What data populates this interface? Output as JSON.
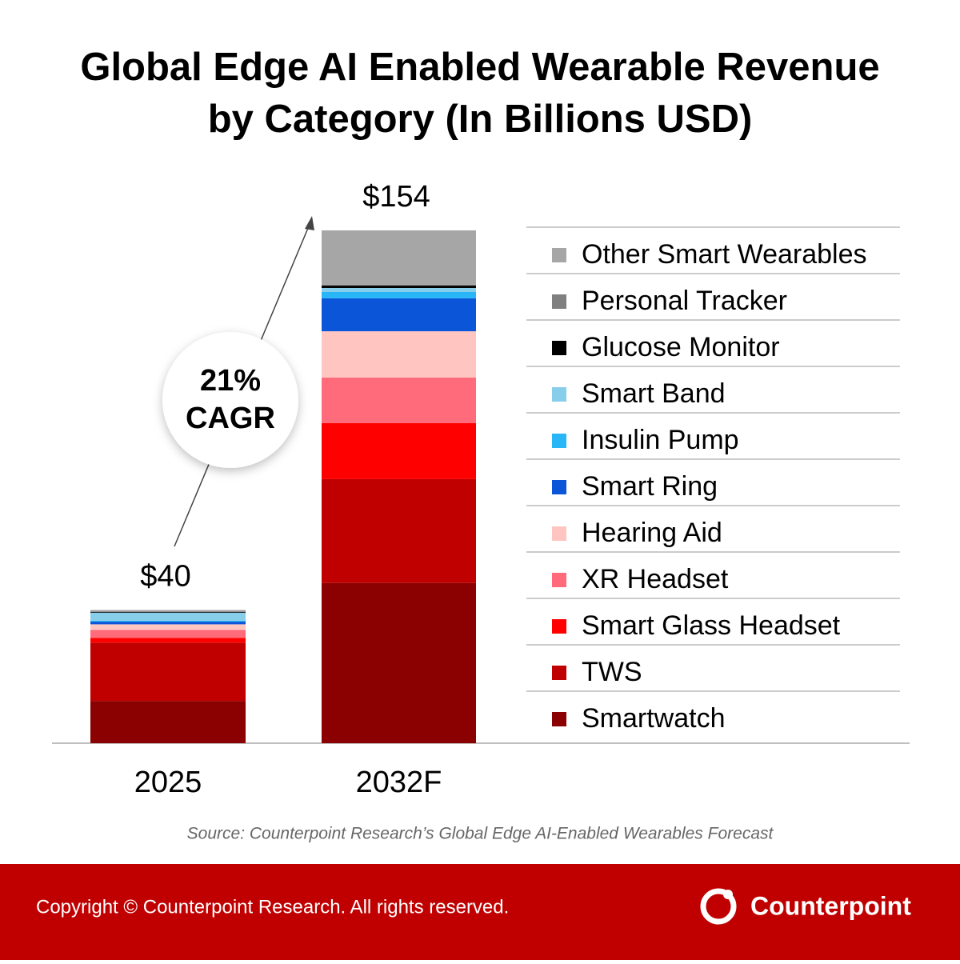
{
  "chart_data": {
    "type": "stacked_bar",
    "title": [
      "Global Edge AI Enabled Wearable Revenue",
      "by Category (In Billions USD)"
    ],
    "categories": [
      "2025",
      "2032F"
    ],
    "series": [
      {
        "name": "Smartwatch",
        "color": "#8b0000",
        "values": [
          12.7,
          48.1
        ]
      },
      {
        "name": "TWS",
        "color": "#c00000",
        "values": [
          17.5,
          31.2
        ]
      },
      {
        "name": "Smart Glass Headset",
        "color": "#ff0000",
        "values": [
          1.4,
          16.8
        ]
      },
      {
        "name": "XR Headset",
        "color": "#ff6b7a",
        "values": [
          2.4,
          13.7
        ]
      },
      {
        "name": "Hearing Aid",
        "color": "#ffc5c0",
        "values": [
          1.7,
          13.9
        ]
      },
      {
        "name": "Smart Ring",
        "color": "#0a55d8",
        "values": [
          0.8,
          9.9
        ]
      },
      {
        "name": "Insulin Pump",
        "color": "#29b6f6",
        "values": [
          0.3,
          1.9
        ]
      },
      {
        "name": "Smart Band",
        "color": "#87ceeb",
        "values": [
          2.4,
          1.2
        ]
      },
      {
        "name": "Glucose Monitor",
        "color": "#000000",
        "values": [
          0.2,
          0.7
        ]
      },
      {
        "name": "Personal Tracker",
        "color": "#808080",
        "values": [
          0.2,
          0.3
        ]
      },
      {
        "name": "Other Smart Wearables",
        "color": "#a6a6a6",
        "values": [
          0.4,
          16.3
        ]
      }
    ],
    "totals": [
      40,
      154
    ],
    "total_labels": [
      "$40",
      "$154"
    ],
    "annotation": [
      "21%",
      "CAGR"
    ],
    "ylim": [
      0,
      160
    ]
  },
  "source": "Source: Counterpoint Research’s Global Edge AI-Enabled Wearables Forecast",
  "footer": {
    "copyright": "Copyright © Counterpoint Research. All rights reserved.",
    "brand": "Counterpoint"
  }
}
